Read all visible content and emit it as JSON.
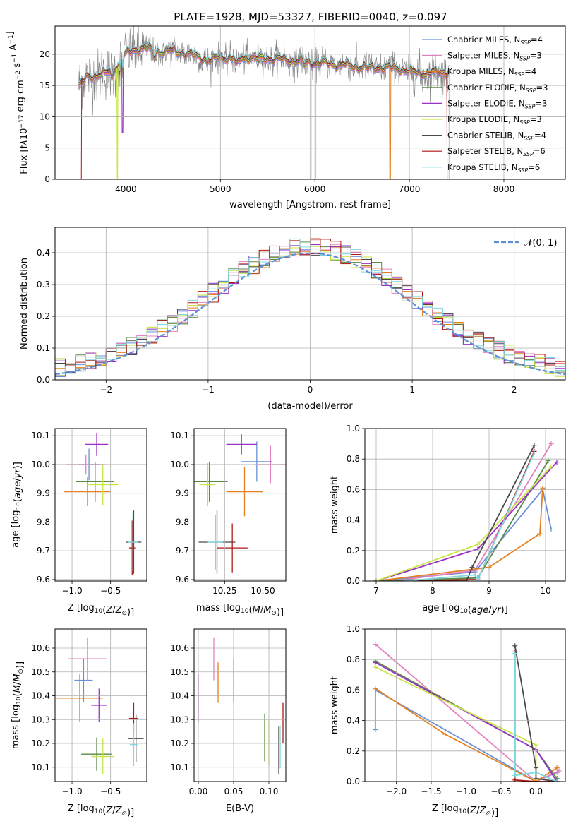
{
  "figure": {
    "title": "PLATE=1928, MJD=53327, FIBERID=0040, z=0.097"
  },
  "colors": {
    "Chabrier MILES": "#6a8fd9",
    "Salpeter MILES": "#e57fc0",
    "Kroupa MILES": "#e6801e",
    "Chabrier ELODIE": "#5a8a4a",
    "Salpeter ELODIE": "#9b30c8",
    "Kroupa ELODIE": "#c8e640",
    "Chabrier STELIB": "#4a4a4a",
    "Salpeter STELIB": "#b01818",
    "Kroupa STELIB": "#7ed8e0",
    "data": "#808080"
  },
  "chart_data": [
    {
      "id": "spectrum",
      "type": "line",
      "title": "PLATE=1928, MJD=53327, FIBERID=0040, z=0.097",
      "xlabel": "wavelength [Angstrom, rest frame]",
      "ylabel": "Flux [f_λ 10^-17 erg cm^-2 s^-1 A^-1]",
      "ylabel_parts": [
        "Flux [f",
        "λ",
        "10",
        "−17",
        " erg cm",
        "−2",
        " s",
        "−1",
        " A",
        "−1",
        "]"
      ],
      "xlim": [
        3250,
        8650
      ],
      "ylim": [
        0,
        24.5
      ],
      "xticks": [
        4000,
        5000,
        6000,
        7000,
        8000
      ],
      "yticks": [
        0,
        5,
        10,
        15,
        20
      ],
      "legend": {
        "placement": "top-right",
        "entries": [
          {
            "label": "Chabrier MILES, N",
            "sub": "SSP",
            "value": "=4",
            "key": "Chabrier MILES"
          },
          {
            "label": "Salpeter MILES, N",
            "sub": "SSP",
            "value": "=3",
            "key": "Salpeter MILES"
          },
          {
            "label": "Kroupa MILES, N",
            "sub": "SSP",
            "value": "=4",
            "key": "Kroupa MILES"
          },
          {
            "label": "Chabrier ELODIE, N",
            "sub": "SSP",
            "value": "=3",
            "key": "Chabrier ELODIE"
          },
          {
            "label": "Salpeter ELODIE, N",
            "sub": "SSP",
            "value": "=3",
            "key": "Salpeter ELODIE"
          },
          {
            "label": "Kroupa ELODIE, N",
            "sub": "SSP",
            "value": "=3",
            "key": "Kroupa ELODIE"
          },
          {
            "label": "Chabrier STELIB, N",
            "sub": "SSP",
            "value": "=4",
            "key": "Chabrier STELIB"
          },
          {
            "label": "Salpeter STELIB, N",
            "sub": "SSP",
            "value": "=6",
            "key": "Salpeter STELIB"
          },
          {
            "label": "Kroupa STELIB, N",
            "sub": "SSP",
            "value": "=6",
            "key": "Kroupa STELIB"
          }
        ]
      },
      "continuum": [
        [
          3500,
          14.8
        ],
        [
          3600,
          16.5
        ],
        [
          3700,
          16.6
        ],
        [
          3800,
          17.0
        ],
        [
          3900,
          18.0
        ],
        [
          4000,
          20.0
        ],
        [
          4100,
          20.8
        ],
        [
          4200,
          21.0
        ],
        [
          4300,
          20.6
        ],
        [
          4400,
          20.4
        ],
        [
          4500,
          20.5
        ],
        [
          4600,
          20.3
        ],
        [
          4700,
          19.8
        ],
        [
          4800,
          19.5
        ],
        [
          4900,
          19.0
        ],
        [
          5000,
          19.6
        ],
        [
          5100,
          19.4
        ],
        [
          5200,
          19.2
        ],
        [
          5300,
          19.6
        ],
        [
          5400,
          19.3
        ],
        [
          5500,
          19.4
        ],
        [
          5600,
          19.2
        ],
        [
          5700,
          19.1
        ],
        [
          5800,
          18.9
        ],
        [
          5900,
          18.8
        ],
        [
          6000,
          18.6
        ],
        [
          6100,
          18.5
        ],
        [
          6200,
          18.4
        ],
        [
          6300,
          18.3
        ],
        [
          6400,
          18.1
        ],
        [
          6500,
          18.0
        ],
        [
          6600,
          17.8
        ],
        [
          6700,
          17.9
        ],
        [
          6800,
          17.8
        ],
        [
          6900,
          17.7
        ],
        [
          7000,
          17.2
        ],
        [
          7100,
          17.0
        ],
        [
          7200,
          17.0
        ],
        [
          7300,
          17.0
        ],
        [
          7400,
          17.3
        ]
      ],
      "model_dropouts": [
        {
          "series": "Salpeter STELIB",
          "x": [
            3500,
            3530
          ]
        },
        {
          "series": "Kroupa ELODIE",
          "x": [
            3905,
            3915
          ]
        },
        {
          "series": "Kroupa MILES",
          "x": [
            6790,
            6800
          ]
        },
        {
          "series": "Salpeter STELIB",
          "x": [
            7400,
            7420
          ]
        }
      ],
      "data_spikes": [
        5950,
        5960,
        6010,
        7420
      ]
    },
    {
      "id": "residuals",
      "type": "histogram",
      "xlabel": "(data-model)/error",
      "ylabel": "Normed distribution",
      "xlim": [
        -2.5,
        2.5
      ],
      "ylim": [
        0,
        0.48
      ],
      "xticks": [
        -2,
        -1,
        0,
        1,
        2
      ],
      "yticks": [
        0.0,
        0.1,
        0.2,
        0.3,
        0.4
      ],
      "bin_width": 0.1,
      "legend": {
        "placement": "top-right",
        "label": "𝒩(0, 1)"
      }
    },
    {
      "id": "age-vs-Z",
      "type": "errorbar",
      "xlabel": "Z [log10(Z/Z⊙)]",
      "ylabel": "age [log10(age/yr)]",
      "xlim": [
        -1.22,
        -0.03
      ],
      "ylim": [
        9.595,
        10.125
      ],
      "xticks": [
        -1.0,
        -0.5
      ],
      "yticks": [
        9.6,
        9.7,
        9.8,
        9.9,
        10.0,
        10.1
      ],
      "points": [
        {
          "series": "Chabrier MILES",
          "x": -0.78,
          "xerr": 0.13,
          "y": 10.0,
          "yerr": 0.055
        },
        {
          "series": "Salpeter MILES",
          "x": -0.82,
          "xerr": 0.25,
          "y": 10.0,
          "yerr": 0.035
        },
        {
          "series": "Kroupa MILES",
          "x": -0.8,
          "xerr": 0.3,
          "y": 9.905,
          "yerr": 0.05
        },
        {
          "series": "Chabrier ELODIE",
          "x": -0.7,
          "xerr": 0.25,
          "y": 9.94,
          "yerr": 0.07
        },
        {
          "series": "Salpeter ELODIE",
          "x": -0.68,
          "xerr": 0.15,
          "y": 10.07,
          "yerr": 0.04
        },
        {
          "series": "Kroupa ELODIE",
          "x": -0.6,
          "xerr": 0.2,
          "y": 9.93,
          "yerr": 0.07
        },
        {
          "series": "Chabrier STELIB",
          "x": -0.2,
          "xerr": 0.1,
          "y": 9.73,
          "yerr": 0.11
        },
        {
          "series": "Salpeter STELIB",
          "x": -0.22,
          "xerr": 0.04,
          "y": 9.71,
          "yerr": 0.095
        },
        {
          "series": "Kroupa STELIB",
          "x": -0.21,
          "xerr": 0.06,
          "y": 9.73,
          "yerr": 0.1
        }
      ]
    },
    {
      "id": "age-vs-mass",
      "type": "errorbar",
      "xlabel": "mass [log10(M/M⊙)]",
      "xlim": [
        10.05,
        10.65
      ],
      "ylim": [
        9.595,
        10.125
      ],
      "xticks": [
        10.25,
        10.5
      ],
      "yticks": [
        9.6,
        9.7,
        9.8,
        9.9,
        10.0,
        10.1
      ],
      "points": [
        {
          "series": "Chabrier MILES",
          "x": 10.46,
          "xerr": 0.1,
          "y": 10.01,
          "yerr": 0.07
        },
        {
          "series": "Salpeter MILES",
          "x": 10.55,
          "xerr": 0.1,
          "y": 10.0,
          "yerr": 0.065
        },
        {
          "series": "Kroupa MILES",
          "x": 10.38,
          "xerr": 0.12,
          "y": 9.905,
          "yerr": 0.085
        },
        {
          "series": "Chabrier ELODIE",
          "x": 10.15,
          "xerr": 0.12,
          "y": 9.94,
          "yerr": 0.07
        },
        {
          "series": "Salpeter ELODIE",
          "x": 10.36,
          "xerr": 0.1,
          "y": 10.07,
          "yerr": 0.035
        },
        {
          "series": "Kroupa ELODIE",
          "x": 10.14,
          "xerr": 0.05,
          "y": 9.93,
          "yerr": 0.075
        },
        {
          "series": "Chabrier STELIB",
          "x": 10.2,
          "xerr": 0.12,
          "y": 9.73,
          "yerr": 0.11
        },
        {
          "series": "Salpeter STELIB",
          "x": 10.3,
          "xerr": 0.1,
          "y": 9.71,
          "yerr": 0.085
        },
        {
          "series": "Kroupa STELIB",
          "x": 10.19,
          "xerr": 0.05,
          "y": 9.73,
          "yerr": 0.095
        }
      ]
    },
    {
      "id": "mass-weight-vs-age",
      "type": "line",
      "xlabel": "age [log10(age/yr)]",
      "ylabel": "mass weight",
      "xlim": [
        6.8,
        10.35
      ],
      "ylim": [
        0,
        1.0
      ],
      "xticks": [
        7,
        8,
        9,
        10
      ],
      "yticks": [
        0.0,
        0.2,
        0.4,
        0.6,
        0.8,
        1.0
      ],
      "series": [
        {
          "name": "Chabrier MILES",
          "x": [
            7.0,
            8.75,
            9.95,
            10.1
          ],
          "y": [
            0.0,
            0.06,
            0.6,
            0.34
          ]
        },
        {
          "name": "Salpeter MILES",
          "x": [
            7.3,
            8.75,
            10.1
          ],
          "y": [
            0.0,
            0.07,
            0.9
          ]
        },
        {
          "name": "Kroupa MILES",
          "x": [
            7.0,
            9.0,
            9.9,
            9.95
          ],
          "y": [
            0.0,
            0.09,
            0.31,
            0.61
          ]
        },
        {
          "name": "Chabrier ELODIE",
          "x": [
            7.0,
            8.8,
            10.05
          ],
          "y": [
            0.0,
            0.02,
            0.79
          ]
        },
        {
          "name": "Salpeter ELODIE",
          "x": [
            7.0,
            8.8,
            10.2
          ],
          "y": [
            0.0,
            0.21,
            0.78
          ]
        },
        {
          "name": "Kroupa ELODIE",
          "x": [
            7.0,
            8.8,
            10.1
          ],
          "y": [
            0.0,
            0.24,
            0.75
          ]
        },
        {
          "name": "Chabrier STELIB",
          "x": [
            7.5,
            8.6,
            8.7,
            9.8
          ],
          "y": [
            0.0,
            0.0,
            0.09,
            0.89
          ]
        },
        {
          "name": "Salpeter STELIB",
          "x": [
            7.5,
            8.8,
            9.8
          ],
          "y": [
            0.0,
            0.01,
            0.85
          ]
        },
        {
          "name": "Kroupa STELIB",
          "x": [
            7.5,
            8.75,
            8.8,
            9.8
          ],
          "y": [
            0.0,
            0.04,
            0.01,
            0.84
          ]
        }
      ]
    },
    {
      "id": "mass-vs-Z",
      "type": "errorbar",
      "xlabel": "Z [log10(Z/Z⊙)]",
      "ylabel": "mass [log10(M/M⊙)]",
      "xlim": [
        -1.22,
        -0.03
      ],
      "ylim": [
        10.04,
        10.68
      ],
      "xticks": [
        -1.0,
        -0.5
      ],
      "yticks": [
        10.1,
        10.2,
        10.3,
        10.4,
        10.5,
        10.6
      ],
      "points": [
        {
          "series": "Chabrier MILES",
          "x": -0.85,
          "xerr": 0.12,
          "y": 10.465,
          "yerr": 0.09
        },
        {
          "series": "Salpeter MILES",
          "x": -0.8,
          "xerr": 0.25,
          "y": 10.555,
          "yerr": 0.09
        },
        {
          "series": "Kroupa MILES",
          "x": -0.9,
          "xerr": 0.3,
          "y": 10.39,
          "yerr": 0.1
        },
        {
          "series": "Chabrier ELODIE",
          "x": -0.68,
          "xerr": 0.2,
          "y": 10.155,
          "yerr": 0.07
        },
        {
          "series": "Salpeter ELODIE",
          "x": -0.65,
          "xerr": 0.1,
          "y": 10.36,
          "yerr": 0.07
        },
        {
          "series": "Kroupa ELODIE",
          "x": -0.6,
          "xerr": 0.15,
          "y": 10.145,
          "yerr": 0.075
        },
        {
          "series": "Chabrier STELIB",
          "x": -0.17,
          "xerr": 0.1,
          "y": 10.22,
          "yerr": 0.1
        },
        {
          "series": "Salpeter STELIB",
          "x": -0.2,
          "xerr": 0.06,
          "y": 10.305,
          "yerr": 0.065
        },
        {
          "series": "Kroupa STELIB",
          "x": -0.2,
          "xerr": 0.05,
          "y": 10.195,
          "yerr": 0.09
        }
      ]
    },
    {
      "id": "mass-vs-EBV",
      "type": "errorbar",
      "xlabel": "E(B-V)",
      "xlim": [
        -0.006,
        0.124
      ],
      "ylim": [
        10.04,
        10.68
      ],
      "xticks": [
        0.0,
        0.05,
        0.1
      ],
      "yticks": [
        10.1,
        10.2,
        10.3,
        10.4,
        10.5,
        10.6
      ],
      "points": [
        {
          "series": "Chabrier MILES",
          "x": 0.05,
          "y": 10.465,
          "yerr": 0.09
        },
        {
          "series": "Salpeter MILES",
          "x": 0.022,
          "y": 10.555,
          "yerr": 0.09
        },
        {
          "series": "Kroupa MILES",
          "x": 0.028,
          "y": 10.455,
          "yerr": 0.085
        },
        {
          "series": "Chabrier ELODIE",
          "x": 0.094,
          "y": 10.225,
          "yerr": 0.1
        },
        {
          "series": "Salpeter ELODIE",
          "x": 0.0,
          "y": 10.39,
          "yerr": 0.1
        },
        {
          "series": "Kroupa ELODIE",
          "x": 0.1,
          "y": 10.2,
          "yerr": 0.095
        },
        {
          "series": "Chabrier STELIB",
          "x": 0.114,
          "y": 10.17,
          "yerr": 0.1
        },
        {
          "series": "Salpeter STELIB",
          "x": 0.12,
          "y": 10.285,
          "yerr": 0.085
        },
        {
          "series": "Kroupa STELIB",
          "x": 0.116,
          "y": 10.185,
          "yerr": 0.09
        }
      ]
    },
    {
      "id": "mass-weight-vs-Z",
      "type": "line",
      "xlabel": "Z [log10(Z/Z⊙)]",
      "ylabel": "mass weight",
      "xlim": [
        -2.45,
        0.42
      ],
      "ylim": [
        0,
        1.0
      ],
      "xticks": [
        -2.0,
        -1.5,
        -1.0,
        -0.5,
        0.0
      ],
      "yticks": [
        0.0,
        0.2,
        0.4,
        0.6,
        0.8,
        1.0
      ],
      "series": [
        {
          "name": "Chabrier MILES",
          "x": [
            -2.3,
            -2.3,
            0.0,
            0.3
          ],
          "y": [
            0.34,
            0.6,
            0.0,
            0.06
          ]
        },
        {
          "name": "Salpeter MILES",
          "x": [
            -2.3,
            0.0,
            0.33
          ],
          "y": [
            0.9,
            0.0,
            0.07
          ]
        },
        {
          "name": "Kroupa MILES",
          "x": [
            -2.3,
            -1.3,
            0.0,
            0.3
          ],
          "y": [
            0.61,
            0.31,
            0.0,
            0.09
          ]
        },
        {
          "name": "Chabrier ELODIE",
          "x": [
            -2.3,
            0.0,
            0.3
          ],
          "y": [
            0.79,
            0.21,
            0.02
          ]
        },
        {
          "name": "Salpeter ELODIE",
          "x": [
            -2.3,
            0.0,
            0.3
          ],
          "y": [
            0.78,
            0.21,
            0.0
          ]
        },
        {
          "name": "Kroupa ELODIE",
          "x": [
            -2.3,
            0.0,
            0.0
          ],
          "y": [
            0.75,
            0.24,
            0.01
          ]
        },
        {
          "name": "Chabrier STELIB",
          "x": [
            -0.3,
            0.0,
            0.0,
            0.3
          ],
          "y": [
            0.89,
            0.09,
            0.02,
            0.0
          ]
        },
        {
          "name": "Salpeter STELIB",
          "x": [
            -0.3,
            -0.3,
            0.0,
            0.3
          ],
          "y": [
            0.85,
            0.01,
            0.0,
            0.0
          ]
        },
        {
          "name": "Kroupa STELIB",
          "x": [
            -0.3,
            -0.3,
            0.0,
            0.3
          ],
          "y": [
            0.84,
            0.04,
            0.06,
            0.0
          ]
        }
      ]
    }
  ]
}
